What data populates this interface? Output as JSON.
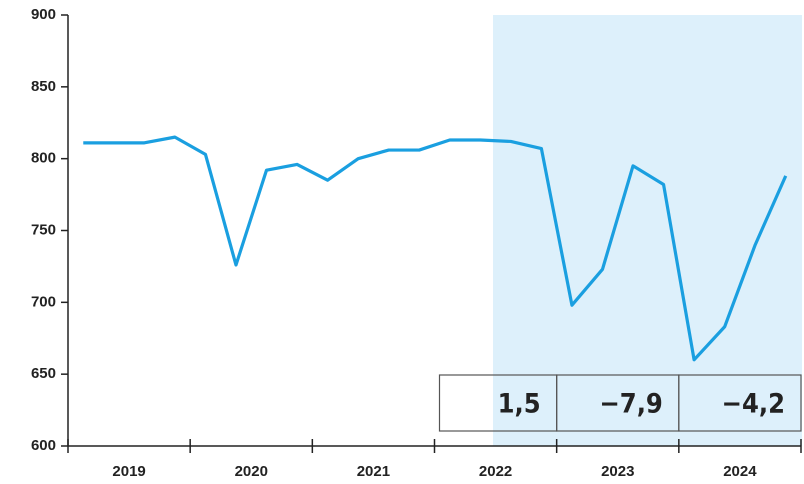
{
  "chart_data": {
    "type": "line",
    "color": "#1a9fe0",
    "categories": [
      "2019",
      "2020",
      "2021",
      "2022",
      "2023",
      "2024"
    ],
    "values": [
      [
        811,
        811,
        811,
        815
      ],
      [
        803,
        726,
        792,
        796
      ],
      [
        785,
        800,
        806,
        806
      ],
      [
        813,
        813,
        812,
        807
      ],
      [
        698,
        723,
        795,
        782
      ],
      [
        660,
        683,
        740,
        788
      ]
    ],
    "annotations": [
      "1,5",
      "−7,9",
      "−4,2"
    ],
    "ylim": [
      600,
      900
    ],
    "yticks": [
      600,
      650,
      700,
      750,
      800,
      850,
      900
    ]
  }
}
